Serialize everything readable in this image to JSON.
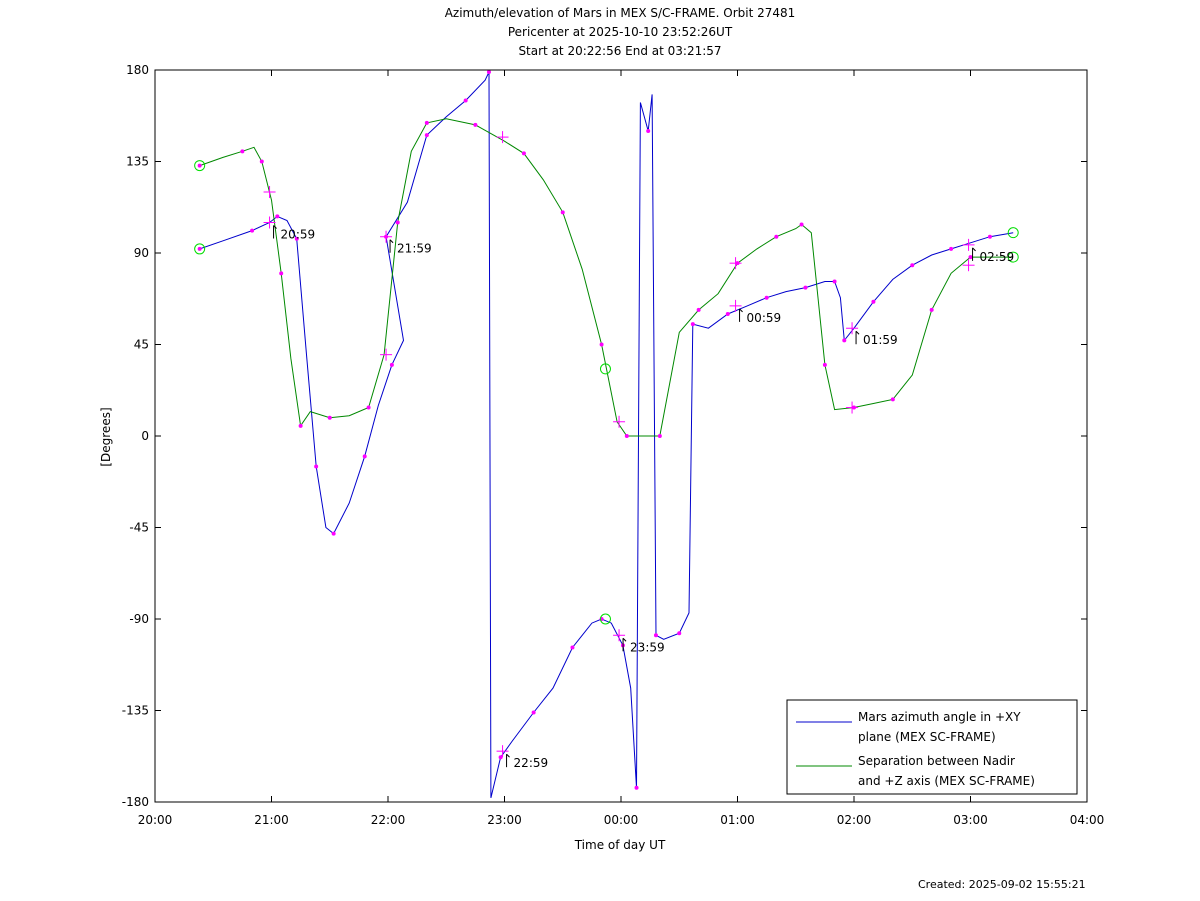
{
  "title_lines": [
    "Azimuth/elevation of Mars in MEX S/C-FRAME.  Orbit 27481",
    "Pericenter at 2025-10-10 23:52:26UT",
    "Start at 20:22:56 End at 03:21:57"
  ],
  "footer": "Created: 2025-09-02 15:55:21",
  "colors": {
    "azimuth": "#0000cc",
    "separation": "#008800",
    "marker": "#ff00ff",
    "circle": "#00dd00"
  },
  "chart_data": {
    "type": "line",
    "xlabel": "Time of day UT",
    "ylabel": "[Degrees]",
    "x_range_hours": [
      "20:00",
      "04:00"
    ],
    "ylim": [
      -180,
      180
    ],
    "x_ticks": [
      "20:00",
      "21:00",
      "22:00",
      "23:00",
      "00:00",
      "01:00",
      "02:00",
      "03:00",
      "04:00"
    ],
    "y_ticks": [
      "180",
      "135",
      "90",
      "45",
      "0",
      "-45",
      "-90",
      "-135",
      "-180"
    ],
    "legend": {
      "placement": "bottom-right",
      "entries": [
        {
          "series": "azimuth",
          "lines": [
            "Mars azimuth angle in +XY",
            "plane (MEX SC-FRAME)"
          ]
        },
        {
          "series": "separation",
          "lines": [
            "Separation between Nadir",
            "and +Z axis (MEX SC-FRAME)"
          ]
        }
      ]
    },
    "series": [
      {
        "key": "azimuth",
        "name": "Mars azimuth angle in +XY plane (MEX SC-FRAME)",
        "points": [
          [
            "20:23",
            92
          ],
          [
            "20:35",
            96
          ],
          [
            "20:50",
            101
          ],
          [
            "20:59",
            105
          ],
          [
            "21:03",
            108
          ],
          [
            "21:08",
            106
          ],
          [
            "21:13",
            97
          ],
          [
            "21:18",
            40
          ],
          [
            "21:23",
            -15
          ],
          [
            "21:28",
            -45
          ],
          [
            "21:32",
            -48
          ],
          [
            "21:40",
            -33
          ],
          [
            "21:48",
            -10
          ],
          [
            "21:55",
            15
          ],
          [
            "22:02",
            35
          ],
          [
            "22:08",
            47
          ],
          [
            "21:59",
            98
          ],
          [
            "22:10",
            115
          ],
          [
            "22:20",
            148
          ],
          [
            "22:30",
            157
          ],
          [
            "22:40",
            165
          ],
          [
            "22:50",
            175
          ],
          [
            "22:52",
            179
          ],
          [
            "22:53",
            -178
          ],
          [
            "22:58",
            -158
          ],
          [
            "23:04",
            -150
          ],
          [
            "23:15",
            -136
          ],
          [
            "23:25",
            -124
          ],
          [
            "23:35",
            -104
          ],
          [
            "23:45",
            -92
          ],
          [
            "23:50",
            -90
          ],
          [
            "23:55",
            -92
          ],
          [
            "00:01",
            -103
          ],
          [
            "00:05",
            -124
          ],
          [
            "00:08",
            -173
          ],
          [
            "00:10",
            164
          ],
          [
            "00:14",
            150
          ],
          [
            "00:16",
            168
          ],
          [
            "00:18",
            -98
          ],
          [
            "00:22",
            -100
          ],
          [
            "00:30",
            -97
          ],
          [
            "00:35",
            -87
          ],
          [
            "00:37",
            55
          ],
          [
            "00:45",
            53
          ],
          [
            "00:55",
            60
          ],
          [
            "01:05",
            64
          ],
          [
            "01:15",
            68
          ],
          [
            "01:25",
            71
          ],
          [
            "01:35",
            73
          ],
          [
            "01:45",
            76
          ],
          [
            "01:50",
            76
          ],
          [
            "01:53",
            68
          ],
          [
            "01:55",
            47
          ],
          [
            "02:00",
            53
          ],
          [
            "02:10",
            66
          ],
          [
            "02:20",
            77
          ],
          [
            "02:30",
            84
          ],
          [
            "02:40",
            89
          ],
          [
            "02:50",
            92
          ],
          [
            "03:00",
            95
          ],
          [
            "03:10",
            98
          ],
          [
            "03:22",
            100
          ]
        ]
      },
      {
        "key": "separation",
        "name": "Separation between Nadir and +Z axis (MEX SC-FRAME)",
        "points": [
          [
            "20:23",
            133
          ],
          [
            "20:35",
            137
          ],
          [
            "20:45",
            140
          ],
          [
            "20:51",
            142
          ],
          [
            "20:55",
            135
          ],
          [
            "21:00",
            116
          ],
          [
            "21:05",
            80
          ],
          [
            "21:10",
            38
          ],
          [
            "21:15",
            5
          ],
          [
            "21:20",
            12
          ],
          [
            "21:30",
            9
          ],
          [
            "21:40",
            10
          ],
          [
            "21:50",
            14
          ],
          [
            "21:58",
            40
          ],
          [
            "22:05",
            105
          ],
          [
            "22:12",
            140
          ],
          [
            "22:20",
            154
          ],
          [
            "22:30",
            156
          ],
          [
            "22:45",
            153
          ],
          [
            "23:00",
            145
          ],
          [
            "23:10",
            139
          ],
          [
            "23:20",
            126
          ],
          [
            "23:30",
            110
          ],
          [
            "23:40",
            82
          ],
          [
            "23:50",
            45
          ],
          [
            "23:58",
            7
          ],
          [
            "00:03",
            0
          ],
          [
            "00:10",
            0
          ],
          [
            "00:20",
            0
          ],
          [
            "00:30",
            51
          ],
          [
            "00:40",
            62
          ],
          [
            "00:50",
            70
          ],
          [
            "01:00",
            85
          ],
          [
            "01:10",
            92
          ],
          [
            "01:20",
            98
          ],
          [
            "01:30",
            102
          ],
          [
            "01:33",
            104
          ],
          [
            "01:38",
            100
          ],
          [
            "01:45",
            35
          ],
          [
            "01:50",
            13
          ],
          [
            "02:00",
            14
          ],
          [
            "02:10",
            16
          ],
          [
            "02:20",
            18
          ],
          [
            "02:30",
            30
          ],
          [
            "02:40",
            62
          ],
          [
            "02:50",
            80
          ],
          [
            "03:00",
            88
          ],
          [
            "03:22",
            88
          ]
        ]
      }
    ],
    "hour_annotations": [
      {
        "label": "20:59",
        "time": "20:59",
        "value": 105
      },
      {
        "label": "21:59",
        "time": "21:59",
        "value": 98
      },
      {
        "label": "22:59",
        "time": "22:59",
        "value": -155
      },
      {
        "label": "23:59",
        "time": "23:59",
        "value": -98
      },
      {
        "label": "00:59",
        "time": "00:59",
        "value": 64
      },
      {
        "label": "01:59",
        "time": "01:59",
        "value": 53
      },
      {
        "label": "02:59",
        "time": "02:59",
        "value": 94
      }
    ],
    "cross_markers": [
      {
        "time": "20:59",
        "value": 120
      },
      {
        "time": "20:59",
        "value": 105
      },
      {
        "time": "21:59",
        "value": 98
      },
      {
        "time": "21:59",
        "value": 40
      },
      {
        "time": "22:59",
        "value": 147
      },
      {
        "time": "22:59",
        "value": -155
      },
      {
        "time": "23:59",
        "value": 7
      },
      {
        "time": "23:59",
        "value": -98
      },
      {
        "time": "00:59",
        "value": 85
      },
      {
        "time": "00:59",
        "value": 64
      },
      {
        "time": "01:59",
        "value": 53
      },
      {
        "time": "01:59",
        "value": 14
      },
      {
        "time": "02:59",
        "value": 94
      },
      {
        "time": "02:59",
        "value": 84
      }
    ],
    "circle_markers": [
      {
        "time": "20:23",
        "value": 133
      },
      {
        "time": "20:23",
        "value": 92
      },
      {
        "time": "23:52",
        "value": 33
      },
      {
        "time": "23:52",
        "value": -90
      },
      {
        "time": "03:22",
        "value": 100
      },
      {
        "time": "03:22",
        "value": 88
      }
    ]
  }
}
